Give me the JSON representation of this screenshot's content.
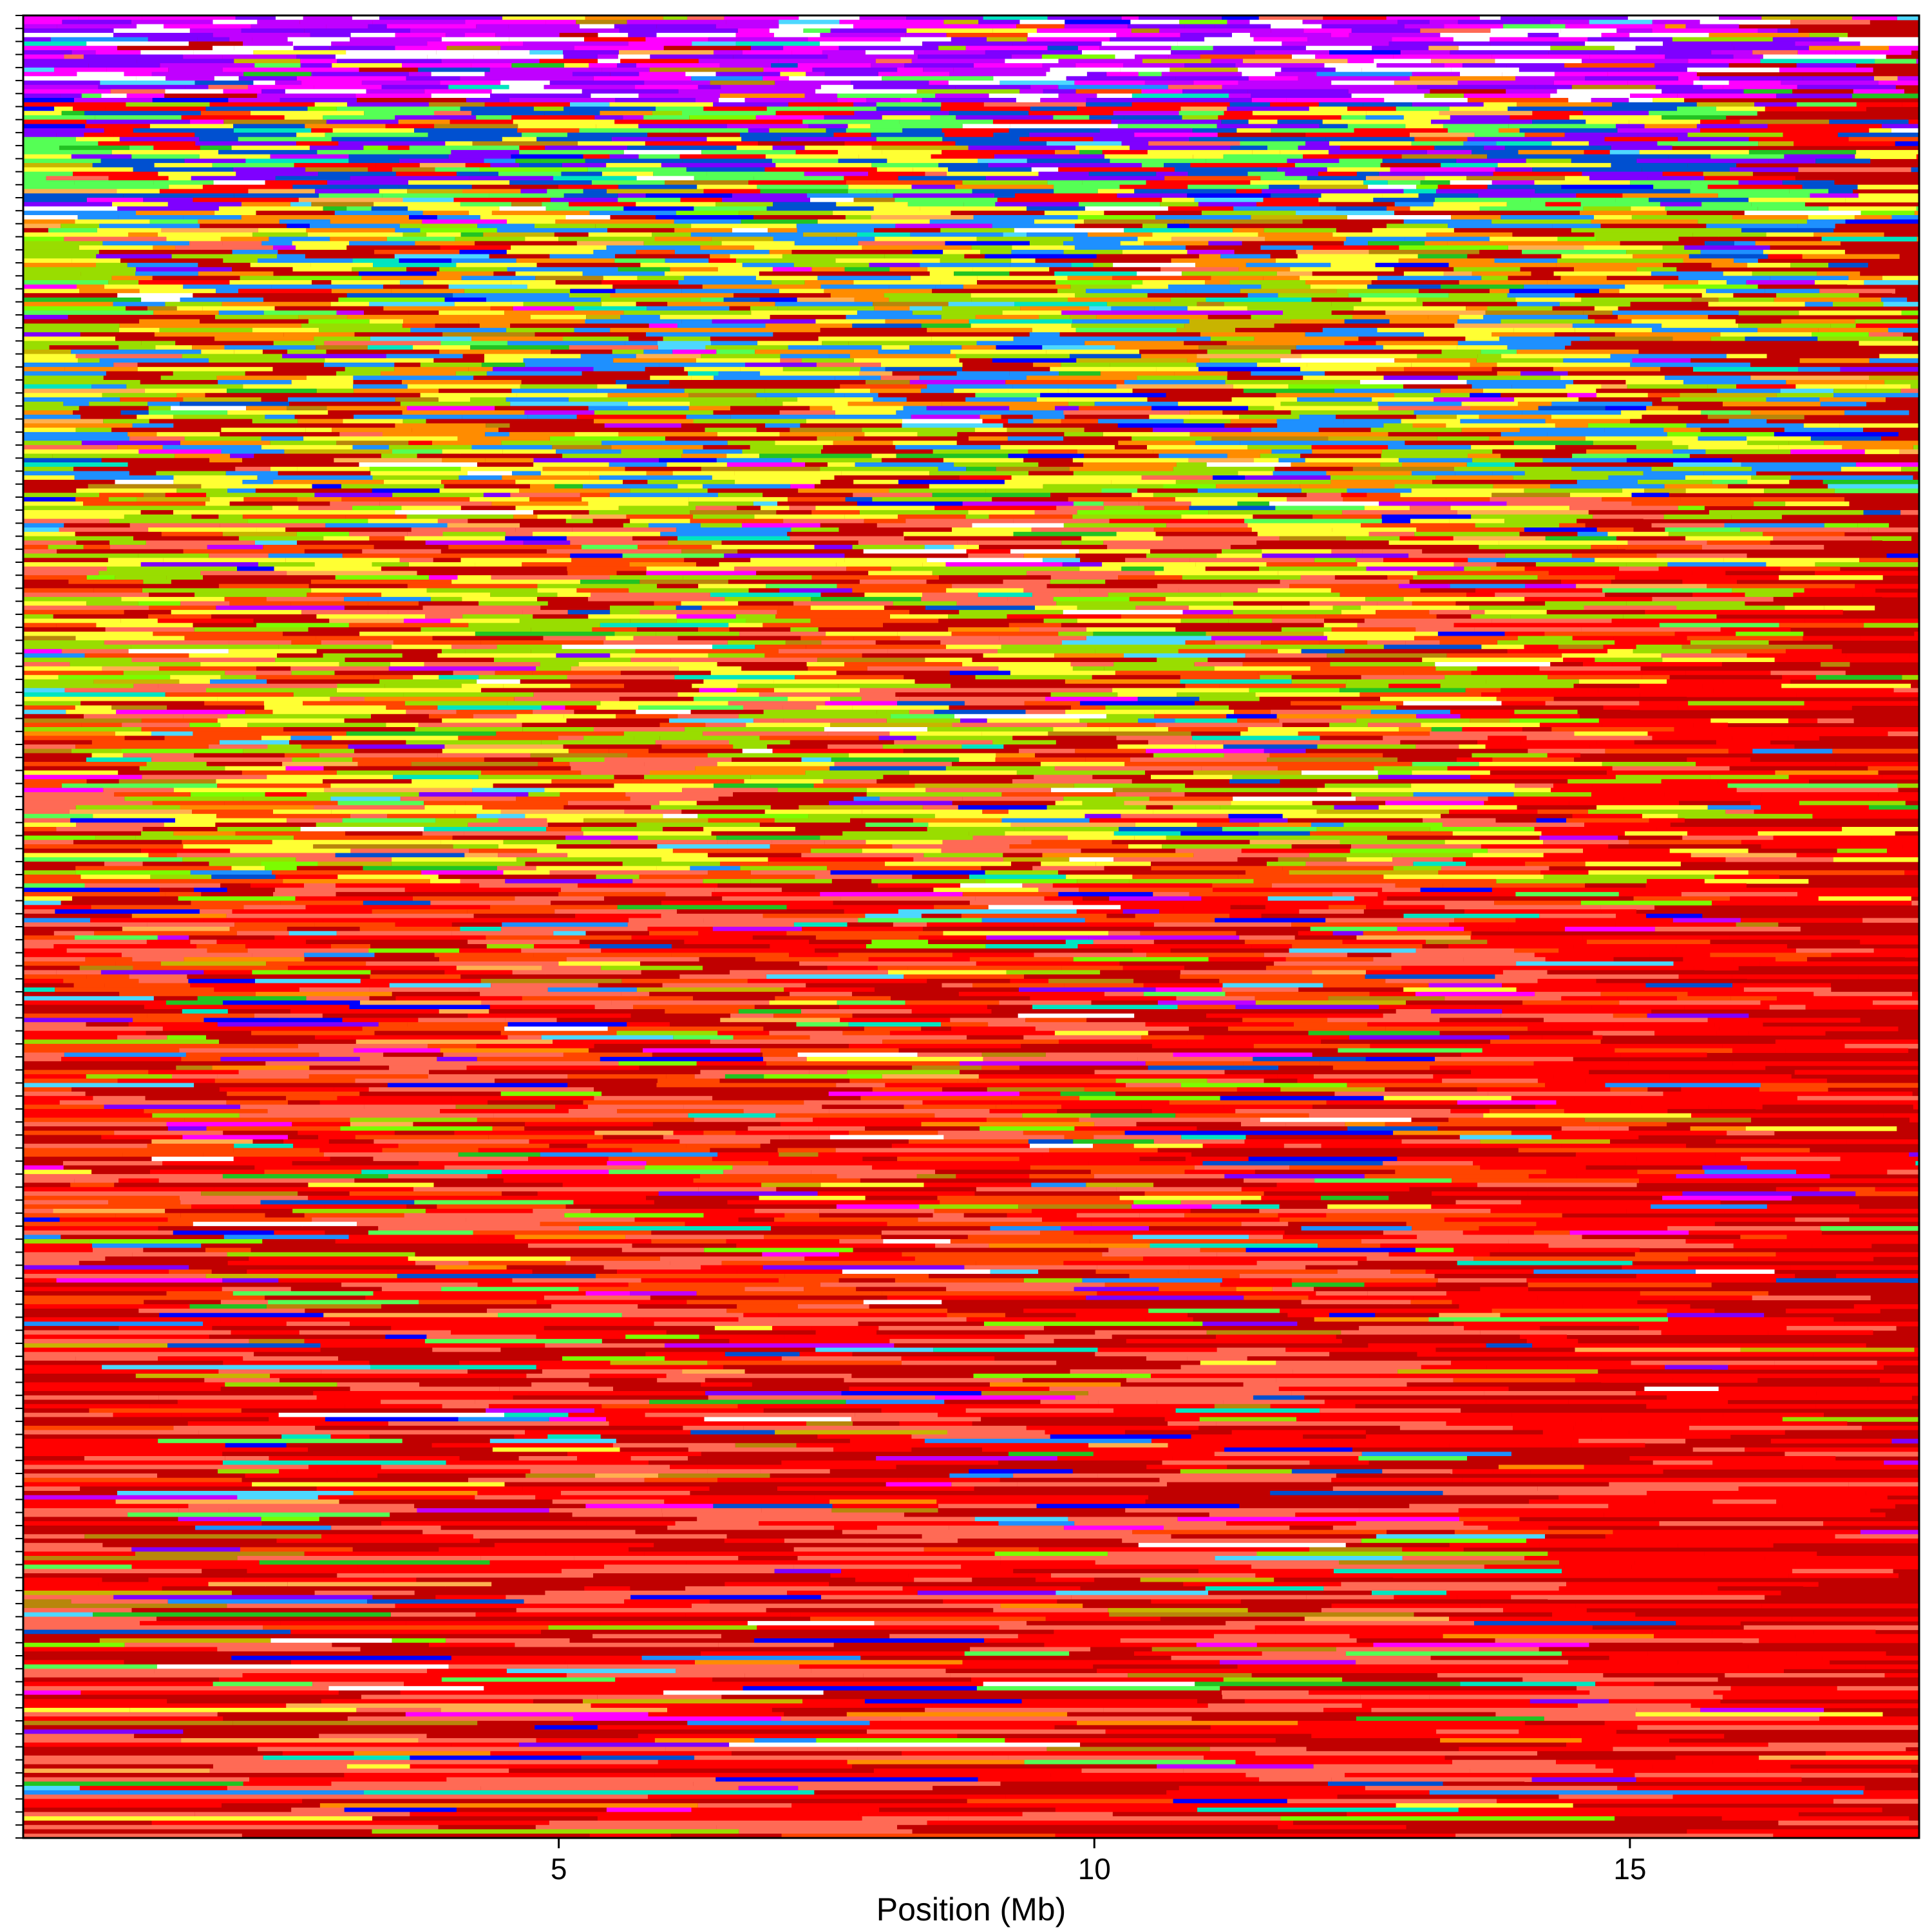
{
  "chart_data": {
    "type": "heatmap",
    "title": "",
    "xlabel": "Position (Mb)",
    "ylabel": "",
    "xlim": [
      0,
      17.7
    ],
    "x_ticks": [
      5,
      10,
      15
    ],
    "x_tick_labels": [
      "5",
      "10",
      "15"
    ],
    "row_count": 420,
    "grid": false,
    "legend": "none",
    "colors": {
      "background": "#c00000",
      "palette": [
        "#c00000",
        "#ff0000",
        "#ff6a55",
        "#ff4500",
        "#ff8c00",
        "#ffb050",
        "#ffff33",
        "#c8b400",
        "#b8860b",
        "#99dd00",
        "#7cfc00",
        "#22c322",
        "#55ff55",
        "#00e5c0",
        "#4dd8ff",
        "#1e90ff",
        "#0050d0",
        "#0000ff",
        "#7f00ff",
        "#c000ff",
        "#ff00ff",
        "#ffffff"
      ]
    },
    "bands": [
      {
        "rows": [
          0,
          20
        ],
        "dominant": [
          "#c000ff",
          "#ff00ff",
          "#ffffff",
          "#7f00ff"
        ]
      },
      {
        "rows": [
          20,
          45
        ],
        "dominant": [
          "#0050d0",
          "#7f00ff",
          "#55ff55",
          "#ffff33",
          "#ff0000"
        ]
      },
      {
        "rows": [
          45,
          110
        ],
        "dominant": [
          "#c00000",
          "#1e90ff",
          "#99dd00",
          "#ff8c00",
          "#ffff33"
        ]
      },
      {
        "rows": [
          110,
          200
        ],
        "dominant": [
          "#c00000",
          "#ff6a55",
          "#99dd00",
          "#ff4500",
          "#ffff33"
        ]
      },
      {
        "rows": [
          200,
          300
        ],
        "dominant": [
          "#c00000",
          "#ff4500",
          "#ff6a55",
          "#ff0000"
        ]
      },
      {
        "rows": [
          300,
          420
        ],
        "dominant": [
          "#c00000",
          "#ff0000",
          "#ff6a55"
        ]
      }
    ]
  }
}
